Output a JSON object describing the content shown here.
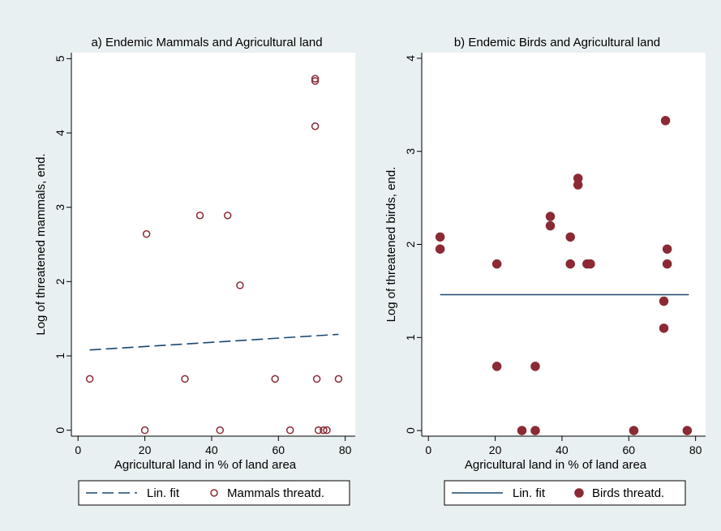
{
  "colors": {
    "outer_background": "#e9f0f2",
    "plot_background": "#ffffff",
    "mammal_marker": "#8b2a35",
    "bird_marker": "#8b2a35",
    "fit_line": "#1a476f"
  },
  "chart_data": [
    {
      "type": "scatter",
      "title": "a) Endemic Mammals and Agricultural land",
      "xlabel": "Agricultural land in % of land area",
      "ylabel": "Log of threatened mammals, end.",
      "xlim": [
        -2,
        83
      ],
      "ylim": [
        -0.08,
        5.08
      ],
      "xticks": [
        0,
        20,
        40,
        60,
        80
      ],
      "yticks": [
        0,
        1,
        2,
        3,
        4,
        5
      ],
      "grid": false,
      "legend_position": "bottom",
      "series": [
        {
          "name": "Lin. fit",
          "type": "line",
          "style": "dashed",
          "x": [
            3.5,
            78
          ],
          "y": [
            1.08,
            1.29
          ]
        },
        {
          "name": "Mammals threatd.",
          "type": "scatter",
          "marker": "hollow-circle",
          "x": [
            3.5,
            20,
            20.5,
            32,
            36.5,
            42.5,
            44.8,
            48.5,
            59,
            63.5,
            71,
            71,
            71,
            71.5,
            72,
            73.5,
            74.5,
            78
          ],
          "y": [
            0.69,
            0,
            2.64,
            0.69,
            2.89,
            0,
            2.89,
            1.95,
            0.69,
            0,
            4.73,
            4.7,
            4.09,
            0.69,
            0,
            0,
            0,
            0.69
          ]
        }
      ]
    },
    {
      "type": "scatter",
      "title": "b) Endemic Birds and Agricultural land",
      "xlabel": "Agricultural land in % of land area",
      "ylabel": "Log of threatened birds, end.",
      "xlim": [
        -2,
        83
      ],
      "ylim": [
        -0.06,
        4.06
      ],
      "xticks": [
        0,
        20,
        40,
        60,
        80
      ],
      "yticks": [
        0,
        1,
        2,
        3,
        4
      ],
      "grid": false,
      "legend_position": "bottom",
      "series": [
        {
          "name": "Lin. fit",
          "type": "line",
          "style": "solid",
          "x": [
            3.5,
            78
          ],
          "y": [
            1.46,
            1.46
          ]
        },
        {
          "name": "Birds threatd.",
          "type": "scatter",
          "marker": "filled-circle",
          "x": [
            3.5,
            3.5,
            20.5,
            20.5,
            28,
            32,
            32,
            36.5,
            36.5,
            42.5,
            42.5,
            44.8,
            44.8,
            47.5,
            48.5,
            61.5,
            70.5,
            70.5,
            71,
            71.5,
            71.5,
            77.5
          ],
          "y": [
            2.08,
            1.95,
            1.79,
            0.69,
            0,
            0.69,
            0,
            2.3,
            2.2,
            2.08,
            1.79,
            2.71,
            2.64,
            1.79,
            1.79,
            0,
            1.39,
            1.1,
            3.33,
            1.95,
            1.79,
            0
          ]
        }
      ]
    }
  ]
}
